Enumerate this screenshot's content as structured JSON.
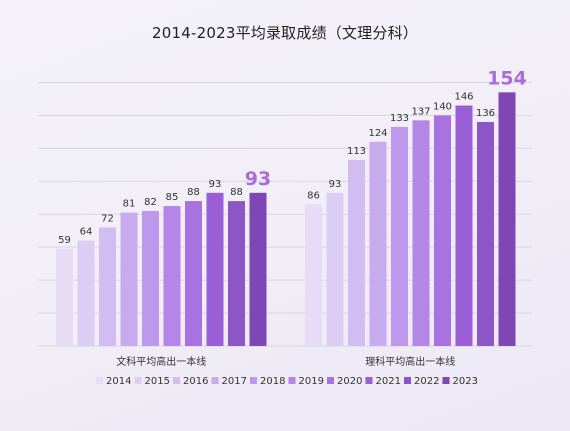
{
  "chart_data": {
    "type": "bar",
    "title": "2014-2023平均录取成绩（文理分科）",
    "categories": [
      "文科平均高出一本线",
      "理科平均高出一本线"
    ],
    "series": [
      {
        "name": "2014",
        "color": "#e6dcf6",
        "values": [
          59,
          86
        ]
      },
      {
        "name": "2015",
        "color": "#dccdf4",
        "values": [
          64,
          93
        ]
      },
      {
        "name": "2016",
        "color": "#d1bdf1",
        "values": [
          72,
          113
        ]
      },
      {
        "name": "2017",
        "color": "#c8abef",
        "values": [
          81,
          124
        ]
      },
      {
        "name": "2018",
        "color": "#bd98ec",
        "values": [
          82,
          133
        ]
      },
      {
        "name": "2019",
        "color": "#b386e7",
        "values": [
          85,
          137
        ]
      },
      {
        "name": "2020",
        "color": "#a873e0",
        "values": [
          88,
          140
        ]
      },
      {
        "name": "2021",
        "color": "#9a5fd6",
        "values": [
          93,
          146
        ]
      },
      {
        "name": "2022",
        "color": "#8d56c6",
        "values": [
          88,
          136
        ]
      },
      {
        "name": "2023",
        "color": "#7f47b5",
        "values": [
          93,
          154
        ]
      }
    ],
    "ylim": [
      0,
      170
    ],
    "grid": true,
    "legend_position": "bottom",
    "highlight_series": "2023"
  }
}
